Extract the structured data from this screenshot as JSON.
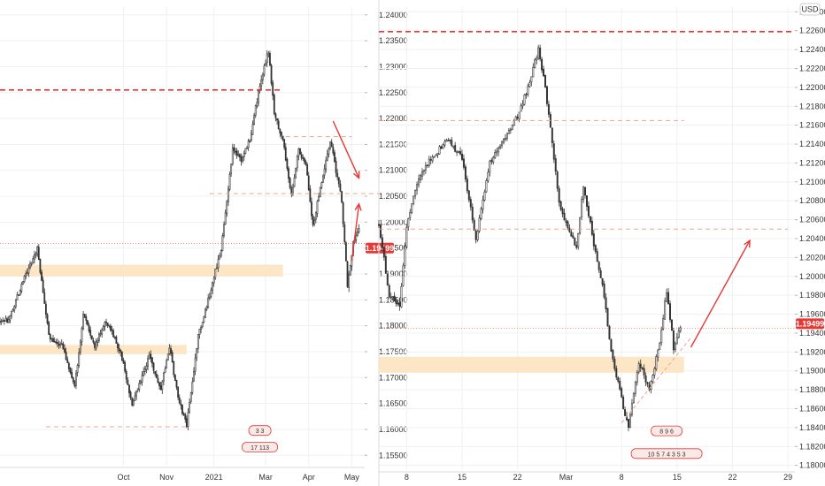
{
  "colors": {
    "up": "#333333",
    "down": "#333333",
    "accent_red": "#e53935",
    "zone_fill": "#fde3c0",
    "grid": "#eef0f3",
    "price_tag_bg": "#e53935",
    "axis_text": "#333333",
    "panel_divider": "#d6d9df"
  },
  "chart_data": [
    {
      "type": "candlestick",
      "title": "",
      "currency": "",
      "last_price_label": "1.19499",
      "last_price": 1.19499,
      "ylim": [
        1.153,
        1.2415
      ],
      "y_ticks": [
        1.155,
        1.16,
        1.165,
        1.17,
        1.175,
        1.18,
        1.185,
        1.19,
        1.195,
        1.2,
        1.205,
        1.21,
        1.215,
        1.22,
        1.225,
        1.23,
        1.235,
        1.24
      ],
      "y_tick_labels": [
        "1.15500",
        "1.16000",
        "1.16500",
        "1.17000",
        "1.17500",
        "1.18000",
        "1.18500",
        "1.19000",
        "1.19500",
        "1.20000",
        "1.20500",
        "1.21000",
        "1.21500",
        "1.22000",
        "1.22500",
        "1.23000",
        "1.23500",
        "1.24000"
      ],
      "x_tick_labels": [
        "Oct",
        "Nov",
        "2021",
        "Mar",
        "Apr",
        "May"
      ],
      "x_tick_bars": [
        80,
        110,
        143,
        179,
        209,
        239
      ],
      "bar_range": [
        -6,
        248
      ],
      "badges": [
        {
          "label": "3 3",
          "bar": 175,
          "price": 1.1597
        },
        {
          "label": "17 113",
          "bar": 175,
          "price": 1.1565
        }
      ],
      "key_points": [
        {
          "bar": 0,
          "price": 1.181
        },
        {
          "bar": 12,
          "price": 1.19
        },
        {
          "bar": 20,
          "price": 1.195
        },
        {
          "bar": 28,
          "price": 1.178
        },
        {
          "bar": 38,
          "price": 1.176
        },
        {
          "bar": 46,
          "price": 1.168
        },
        {
          "bar": 52,
          "price": 1.182
        },
        {
          "bar": 60,
          "price": 1.176
        },
        {
          "bar": 68,
          "price": 1.181
        },
        {
          "bar": 78,
          "price": 1.175
        },
        {
          "bar": 86,
          "price": 1.165
        },
        {
          "bar": 98,
          "price": 1.174
        },
        {
          "bar": 106,
          "price": 1.168
        },
        {
          "bar": 112,
          "price": 1.176
        },
        {
          "bar": 118,
          "price": 1.166
        },
        {
          "bar": 124,
          "price": 1.161
        },
        {
          "bar": 132,
          "price": 1.178
        },
        {
          "bar": 140,
          "price": 1.186
        },
        {
          "bar": 148,
          "price": 1.195
        },
        {
          "bar": 156,
          "price": 1.214
        },
        {
          "bar": 162,
          "price": 1.212
        },
        {
          "bar": 168,
          "price": 1.216
        },
        {
          "bar": 174,
          "price": 1.225
        },
        {
          "bar": 178,
          "price": 1.23
        },
        {
          "bar": 181,
          "price": 1.233
        },
        {
          "bar": 185,
          "price": 1.221
        },
        {
          "bar": 191,
          "price": 1.216
        },
        {
          "bar": 197,
          "price": 1.205
        },
        {
          "bar": 202,
          "price": 1.214
        },
        {
          "bar": 207,
          "price": 1.211
        },
        {
          "bar": 212,
          "price": 1.199
        },
        {
          "bar": 218,
          "price": 1.208
        },
        {
          "bar": 224,
          "price": 1.216
        },
        {
          "bar": 228,
          "price": 1.21
        },
        {
          "bar": 232,
          "price": 1.204
        },
        {
          "bar": 236,
          "price": 1.188
        },
        {
          "bar": 240,
          "price": 1.196
        },
        {
          "bar": 244,
          "price": 1.199
        }
      ],
      "horizontal_lines": [
        {
          "price": 1.2255,
          "style": "dashed-bold",
          "bar_from": -6,
          "bar_to": 191
        },
        {
          "price": 1.2165,
          "style": "dashed-light",
          "bar_from": 193,
          "bar_to": 239
        },
        {
          "price": 1.2055,
          "style": "dashed-light",
          "bar_from": 140,
          "bar_to": 262
        },
        {
          "price": 1.1959,
          "style": "dotted",
          "bar_from": -6,
          "bar_to": 262
        },
        {
          "price": 1.1605,
          "style": "dashed-light",
          "bar_from": 26,
          "bar_to": 124
        }
      ],
      "zones": [
        {
          "price_high": 1.1918,
          "price_low": 1.1895,
          "bar_from": -6,
          "bar_to": 191
        },
        {
          "price_high": 1.1763,
          "price_low": 1.1745,
          "bar_from": -6,
          "bar_to": 124
        }
      ],
      "arrows": [
        {
          "from": {
            "bar": 226,
            "price": 1.2195
          },
          "to": {
            "bar": 244,
            "price": 1.2085
          }
        },
        {
          "from": {
            "bar": 239,
            "price": 1.1925
          },
          "to": {
            "bar": 244,
            "price": 1.2035
          }
        }
      ]
    },
    {
      "type": "candlestick",
      "title": "",
      "currency": "USD",
      "last_price_label": "1.19499",
      "last_price": 1.19499,
      "ylim": [
        1.1795,
        1.2285
      ],
      "y_ticks": [
        1.18,
        1.182,
        1.184,
        1.186,
        1.188,
        1.19,
        1.192,
        1.194,
        1.196,
        1.198,
        1.2,
        1.202,
        1.204,
        1.206,
        1.208,
        1.21,
        1.212,
        1.214,
        1.216,
        1.218,
        1.22,
        1.222,
        1.224,
        1.226,
        1.228
      ],
      "y_tick_labels": [
        "1.18000",
        "1.18200",
        "1.18400",
        "1.18600",
        "1.18800",
        "1.19000",
        "1.19200",
        "1.19400",
        "1.19600",
        "1.19800",
        "1.20000",
        "1.20200",
        "1.20400",
        "1.20600",
        "1.20800",
        "1.21000",
        "1.21200",
        "1.21400",
        "1.21600",
        "1.21800",
        "1.22000",
        "1.22200",
        "1.22400",
        "1.22600",
        "1.22800"
      ],
      "x_tick_labels": [
        "8",
        "15",
        "22",
        "Mar",
        "8",
        "15",
        "22",
        "29"
      ],
      "x_tick_bars": [
        16,
        48,
        80,
        108,
        140,
        172,
        204,
        236
      ],
      "bar_range": [
        0,
        240
      ],
      "badges": [
        {
          "label": "8 9 6",
          "bar": 166,
          "price": 1.1836
        },
        {
          "label": "10 5 7 4 3 5 3",
          "bar": 166,
          "price": 1.1812
        }
      ],
      "key_points": [
        {
          "bar": 0,
          "price": 1.2055
        },
        {
          "bar": 6,
          "price": 1.198
        },
        {
          "bar": 12,
          "price": 1.197
        },
        {
          "bar": 16,
          "price": 1.205
        },
        {
          "bar": 22,
          "price": 1.21
        },
        {
          "bar": 30,
          "price": 1.2125
        },
        {
          "bar": 40,
          "price": 1.2145
        },
        {
          "bar": 48,
          "price": 1.2125
        },
        {
          "bar": 56,
          "price": 1.204
        },
        {
          "bar": 64,
          "price": 1.212
        },
        {
          "bar": 72,
          "price": 1.2145
        },
        {
          "bar": 80,
          "price": 1.217
        },
        {
          "bar": 86,
          "price": 1.22
        },
        {
          "bar": 92,
          "price": 1.224
        },
        {
          "bar": 96,
          "price": 1.22
        },
        {
          "bar": 104,
          "price": 1.208
        },
        {
          "bar": 108,
          "price": 1.2055
        },
        {
          "bar": 114,
          "price": 1.203
        },
        {
          "bar": 118,
          "price": 1.2095
        },
        {
          "bar": 124,
          "price": 1.2035
        },
        {
          "bar": 130,
          "price": 1.198
        },
        {
          "bar": 134,
          "price": 1.192
        },
        {
          "bar": 140,
          "price": 1.187
        },
        {
          "bar": 144,
          "price": 1.184
        },
        {
          "bar": 150,
          "price": 1.191
        },
        {
          "bar": 156,
          "price": 1.188
        },
        {
          "bar": 162,
          "price": 1.193
        },
        {
          "bar": 166,
          "price": 1.1985
        },
        {
          "bar": 170,
          "price": 1.1925
        },
        {
          "bar": 174,
          "price": 1.1945
        }
      ],
      "horizontal_lines": [
        {
          "price": 1.2259,
          "style": "dashed-bold",
          "bar_from": 0,
          "bar_to": 240
        },
        {
          "price": 1.2165,
          "style": "dashed-light",
          "bar_from": 0,
          "bar_to": 176
        },
        {
          "price": 1.205,
          "style": "dashed-light",
          "bar_from": 0,
          "bar_to": 236
        },
        {
          "price": 1.1945,
          "style": "dotted",
          "bar_from": 0,
          "bar_to": 240
        }
      ],
      "zones": [
        {
          "price_high": 1.1915,
          "price_low": 1.1898,
          "bar_from": 0,
          "bar_to": 176
        }
      ],
      "arrows": [
        {
          "from": {
            "bar": 180,
            "price": 1.1925
          },
          "to": {
            "bar": 214,
            "price": 1.2038
          }
        }
      ],
      "trendline_dashed": {
        "from": {
          "bar": 140,
          "price": 1.1845
        },
        "to": {
          "bar": 180,
          "price": 1.1935
        }
      }
    }
  ]
}
